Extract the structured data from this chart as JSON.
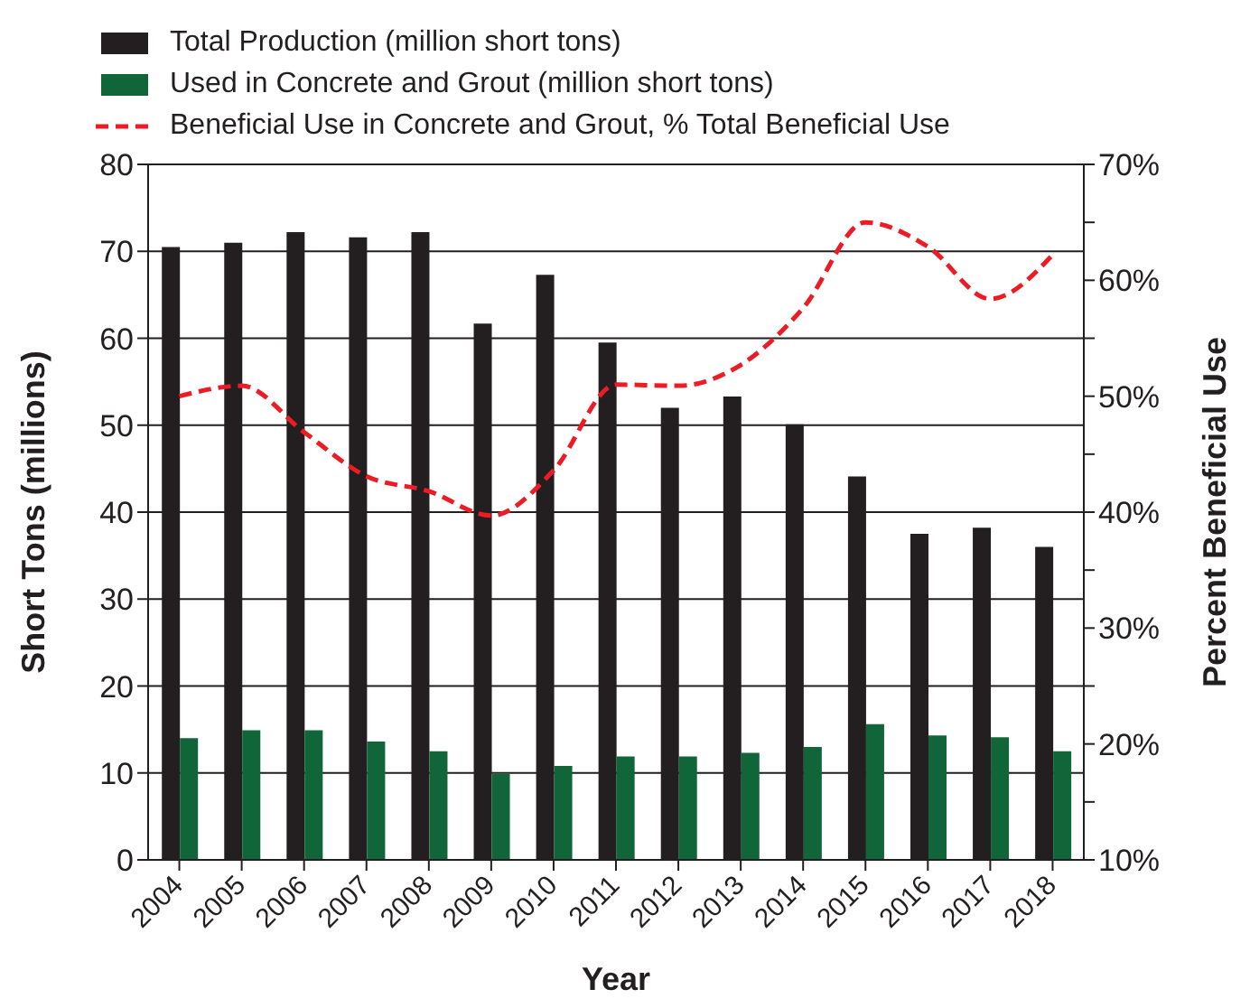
{
  "chart_data": {
    "type": "bar",
    "xlabel": "Year",
    "ylabel": "Short Tons (millions)",
    "y2label": "Percent Beneficial Use",
    "categories": [
      "2004",
      "2005",
      "2006",
      "2007",
      "2008",
      "2009",
      "2010",
      "2011",
      "2012",
      "2013",
      "2014",
      "2015",
      "2016",
      "2017",
      "2018"
    ],
    "series": [
      {
        "name": "Total Production (million short tons)",
        "color": "#231f20",
        "values": [
          70.5,
          71,
          72.2,
          71.6,
          72.2,
          61.7,
          67.3,
          59.5,
          52,
          53.3,
          50.1,
          44.1,
          37.5,
          38.2,
          36
        ]
      },
      {
        "name": "Used in Concrete and Grout (million short tons)",
        "color": "#116639",
        "values": [
          14,
          14.9,
          14.9,
          13.6,
          12.5,
          9.9,
          10.8,
          11.9,
          11.9,
          12.3,
          13,
          15.6,
          14.3,
          14.1,
          12.5
        ]
      },
      {
        "name": "Beneficial Use in Concrete and Grout, % Total Beneficial Use",
        "type": "line",
        "axis": "y2",
        "color": "#ed1c24",
        "line_style": "dashed",
        "marker": "none",
        "values": [
          50,
          50.9,
          46.9,
          43.1,
          41.8,
          39.7,
          43.6,
          51,
          50.9,
          52.7,
          57.6,
          65,
          62.9,
          58.4,
          62.2
        ]
      }
    ],
    "ylim": [
      0,
      80
    ],
    "yticks": [
      0,
      10,
      20,
      30,
      40,
      50,
      60,
      70,
      80
    ],
    "y2lim": [
      10,
      70
    ],
    "y2ticks": [
      {
        "value": 10,
        "label": "10%"
      },
      {
        "value": 15,
        "label": null
      },
      {
        "value": 20,
        "label": "20%"
      },
      {
        "value": 25,
        "label": null
      },
      {
        "value": 30,
        "label": "30%"
      },
      {
        "value": 35,
        "label": null
      },
      {
        "value": 40,
        "label": "40%"
      },
      {
        "value": 45,
        "label": null
      },
      {
        "value": 50,
        "label": "50%"
      },
      {
        "value": 55,
        "label": null
      },
      {
        "value": 60,
        "label": "60%"
      },
      {
        "value": 65,
        "label": null
      },
      {
        "value": 70,
        "label": "70%"
      }
    ],
    "grid": "y",
    "legend": "top left"
  }
}
